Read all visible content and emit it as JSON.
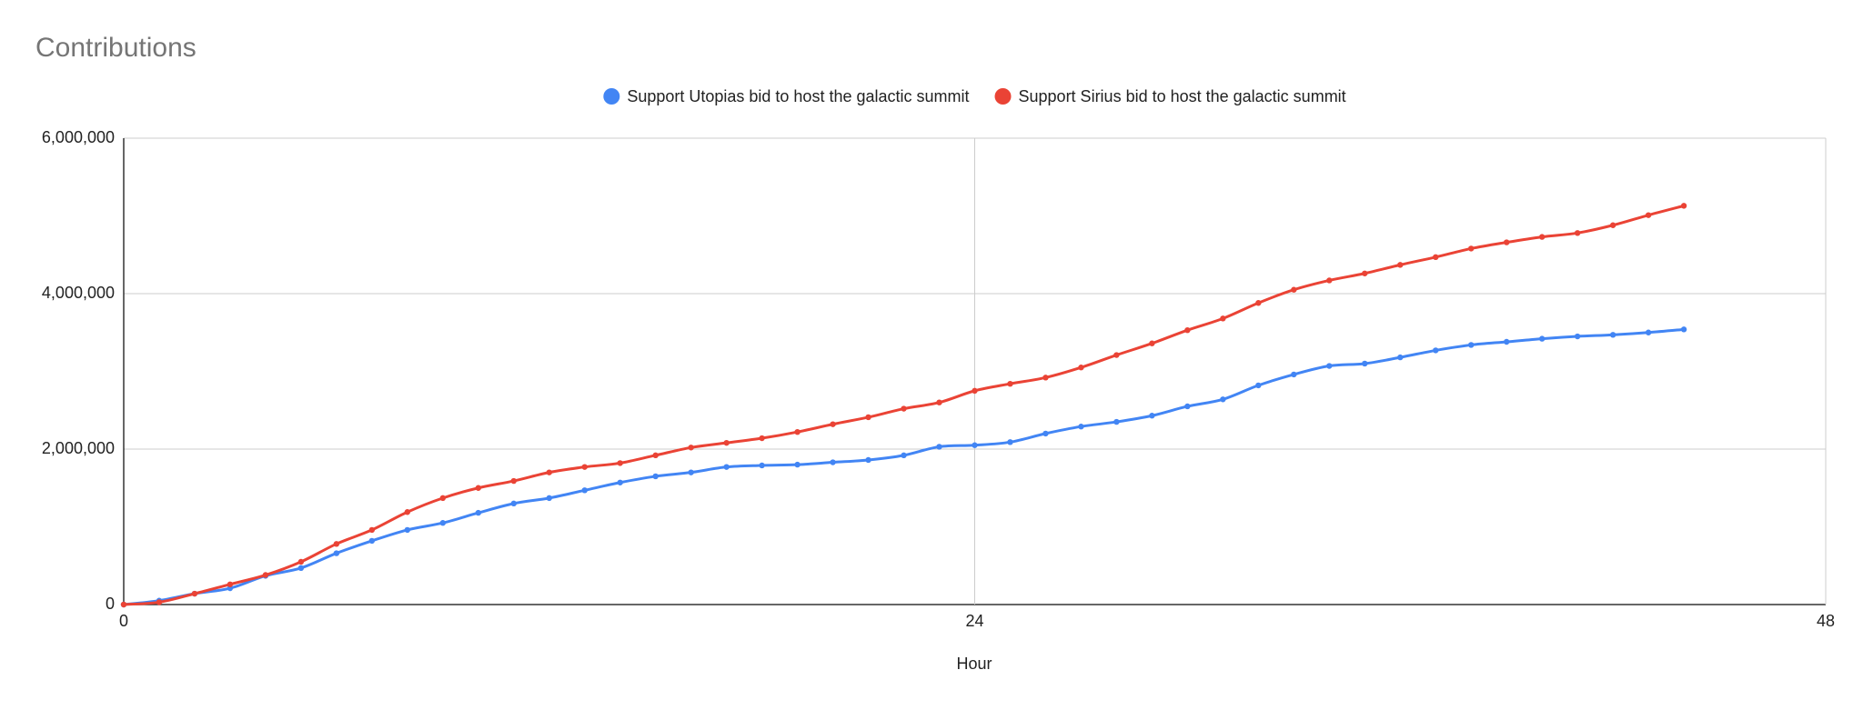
{
  "chart_data": {
    "type": "line",
    "title": "Contributions",
    "x_label": "Hour",
    "x": [
      0,
      1,
      2,
      3,
      4,
      5,
      6,
      7,
      8,
      9,
      10,
      11,
      12,
      13,
      14,
      15,
      16,
      17,
      18,
      19,
      20,
      21,
      22,
      23,
      24,
      25,
      26,
      27,
      28,
      29,
      30,
      31,
      32,
      33,
      34,
      35,
      36,
      37,
      38,
      39,
      40,
      41,
      42,
      43,
      44
    ],
    "series": [
      {
        "name": "Support Utopias bid to host the galactic summit",
        "color": "#4285f4",
        "values": [
          0,
          50000,
          140000,
          210000,
          370000,
          470000,
          660000,
          820000,
          960000,
          1050000,
          1180000,
          1300000,
          1370000,
          1470000,
          1570000,
          1650000,
          1700000,
          1770000,
          1790000,
          1800000,
          1830000,
          1860000,
          1920000,
          2030000,
          2050000,
          2090000,
          2200000,
          2290000,
          2350000,
          2430000,
          2550000,
          2640000,
          2820000,
          2960000,
          3070000,
          3100000,
          3180000,
          3270000,
          3340000,
          3380000,
          3420000,
          3450000,
          3470000,
          3500000,
          3540000
        ]
      },
      {
        "name": "Support Sirius bid to host the galactic summit",
        "color": "#ea4335",
        "values": [
          0,
          30000,
          140000,
          260000,
          380000,
          550000,
          780000,
          960000,
          1190000,
          1370000,
          1500000,
          1590000,
          1700000,
          1770000,
          1820000,
          1920000,
          2020000,
          2080000,
          2140000,
          2220000,
          2320000,
          2410000,
          2520000,
          2600000,
          2750000,
          2840000,
          2920000,
          3050000,
          3210000,
          3360000,
          3530000,
          3680000,
          3880000,
          4050000,
          4170000,
          4260000,
          4370000,
          4470000,
          4580000,
          4660000,
          4730000,
          4780000,
          4880000,
          5010000,
          5130000
        ]
      }
    ],
    "xlim": [
      0,
      48
    ],
    "xticks": [
      0,
      24,
      48
    ],
    "ylim": [
      0,
      6000000
    ],
    "yticks": [
      0,
      {
        "value": 2000000,
        "label": "2,000,000"
      },
      {
        "value": 4000000,
        "label": "4,000,000"
      },
      {
        "value": 6000000,
        "label": "6,000,000"
      }
    ],
    "grid": true,
    "legend": "top"
  }
}
